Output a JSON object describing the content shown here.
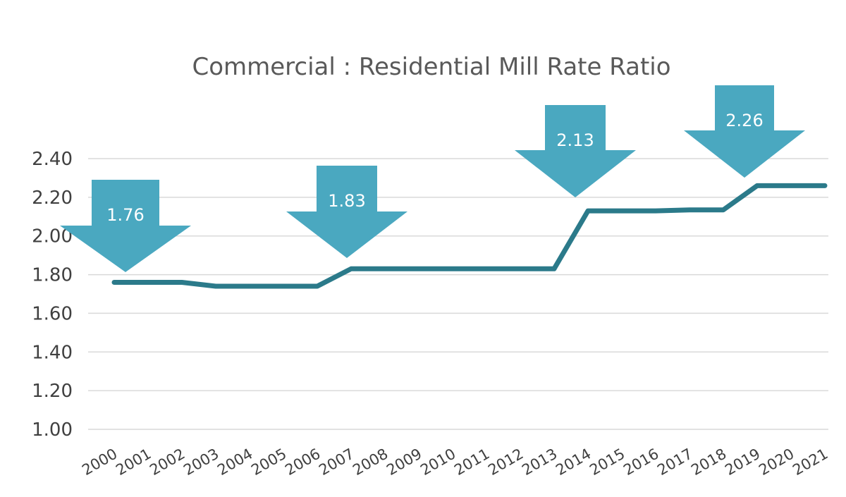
{
  "chart_data": {
    "type": "line",
    "title": "Commercial : Residential Mill Rate Ratio",
    "xlabel": "",
    "ylabel": "",
    "ylim": [
      1.0,
      2.4
    ],
    "yticks": [
      "1.00",
      "1.20",
      "1.40",
      "1.60",
      "1.80",
      "2.00",
      "2.20",
      "2.40"
    ],
    "categories": [
      "2000",
      "2001",
      "2002",
      "2003",
      "2004",
      "2005",
      "2006",
      "2007",
      "2008",
      "2009",
      "2010",
      "2011",
      "2012",
      "2013",
      "2014",
      "2015",
      "2016",
      "2017",
      "2018",
      "2019",
      "2020",
      "2021"
    ],
    "series": [
      {
        "name": "Commercial : Residential Mill Rate Ratio",
        "values": [
          1.76,
          1.76,
          1.76,
          1.74,
          1.74,
          1.74,
          1.74,
          1.83,
          1.83,
          1.83,
          1.83,
          1.83,
          1.83,
          1.83,
          2.13,
          2.13,
          2.13,
          2.135,
          2.135,
          2.26,
          2.26,
          2.26
        ]
      }
    ],
    "annotations": [
      {
        "label": "1.76",
        "category": "2000"
      },
      {
        "label": "1.83",
        "category": "2007"
      },
      {
        "label": "2.13",
        "category": "2014"
      },
      {
        "label": "2.26",
        "category": "2019"
      }
    ],
    "grid": true,
    "legend": "none"
  },
  "colors": {
    "line": "#2b7a8a",
    "callout": "#4aa8c0",
    "grid": "#d9d9d9"
  }
}
